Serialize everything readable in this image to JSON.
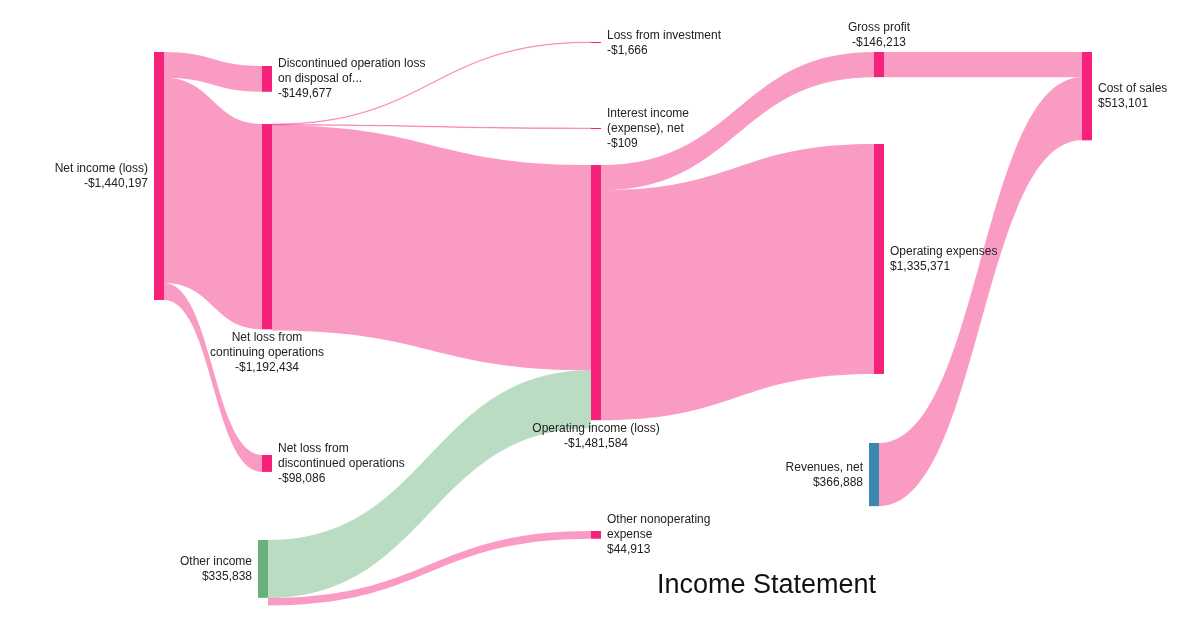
{
  "chart_data": {
    "type": "other",
    "title": "Income Statement",
    "categories": [
      "Net income (loss)",
      "Discontinued operation loss on disposal of...",
      "Net loss from continuing operations",
      "Net loss from discontinued operations",
      "Loss from investment",
      "Interest income (expense), net",
      "Operating income (loss)",
      "Other income",
      "Other nonoperating expense",
      "Gross profit",
      "Operating expenses",
      "Revenues, net",
      "Cost of sales"
    ],
    "values": [
      -1440197,
      -149677,
      -1192434,
      -98086,
      -1666,
      -109,
      -1481584,
      335838,
      44913,
      -146213,
      1335371,
      366888,
      513101
    ],
    "value_labels": [
      "-$1,440,197",
      "-$149,677",
      "-$1,192,434",
      "-$98,086",
      "-$1,666",
      "-$109",
      "-$1,481,584",
      "$335,838",
      "$44,913",
      "-$146,213",
      "$1,335,371",
      "$366,888",
      "$513,101"
    ],
    "colors": [
      "#f5217b",
      "#f5217b",
      "#f5217b",
      "#f5217b",
      "#f5217b",
      "#f5217b",
      "#f5217b",
      "#66b27a",
      "#f5217b",
      "#f5217b",
      "#f5217b",
      "#3a88ae",
      "#f5217b"
    ]
  }
}
